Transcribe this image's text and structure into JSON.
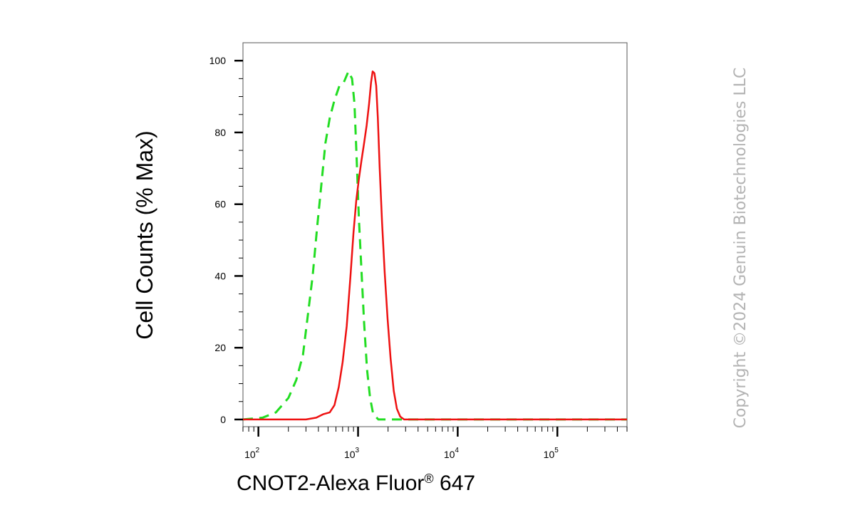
{
  "chart_data": {
    "type": "line",
    "title": "",
    "xlabel": "CNOT2-Alexa Fluor",
    "xlabel_mark": "®",
    "xlabel_suffix": " 647",
    "ylabel": "Cell Counts (% Max)",
    "x_scale": "log",
    "xlim": [
      70,
      500000
    ],
    "ylim": [
      -2,
      105
    ],
    "x_ticks": [
      {
        "value": 100,
        "base": "10",
        "exp": "2"
      },
      {
        "value": 1000,
        "base": "10",
        "exp": "3"
      },
      {
        "value": 10000,
        "base": "10",
        "exp": "4"
      },
      {
        "value": 100000,
        "base": "10",
        "exp": "5"
      }
    ],
    "y_ticks": [
      0,
      20,
      40,
      60,
      80,
      100
    ],
    "grid": false,
    "series": [
      {
        "color": "#22dd22",
        "style": "dashed",
        "points": [
          [
            70,
            0
          ],
          [
            110,
            0.5
          ],
          [
            150,
            2
          ],
          [
            200,
            6
          ],
          [
            240,
            11
          ],
          [
            280,
            18
          ],
          [
            310,
            28
          ],
          [
            350,
            40
          ],
          [
            390,
            54
          ],
          [
            430,
            66
          ],
          [
            470,
            77
          ],
          [
            520,
            84
          ],
          [
            580,
            89
          ],
          [
            650,
            93
          ],
          [
            720,
            94
          ],
          [
            800,
            97
          ],
          [
            870,
            95
          ],
          [
            920,
            88
          ],
          [
            970,
            72
          ],
          [
            1020,
            56
          ],
          [
            1080,
            42
          ],
          [
            1150,
            27
          ],
          [
            1230,
            14
          ],
          [
            1320,
            6
          ],
          [
            1420,
            1.5
          ],
          [
            1600,
            0
          ],
          [
            500000,
            0
          ]
        ]
      },
      {
        "color": "#ee1111",
        "style": "solid",
        "points": [
          [
            70,
            0
          ],
          [
            300,
            0
          ],
          [
            380,
            0.5
          ],
          [
            450,
            1.5
          ],
          [
            520,
            2
          ],
          [
            580,
            4
          ],
          [
            640,
            9
          ],
          [
            700,
            16
          ],
          [
            770,
            26
          ],
          [
            840,
            40
          ],
          [
            900,
            52
          ],
          [
            960,
            61
          ],
          [
            1020,
            67
          ],
          [
            1080,
            72
          ],
          [
            1150,
            77
          ],
          [
            1220,
            82
          ],
          [
            1290,
            88
          ],
          [
            1350,
            94
          ],
          [
            1400,
            97
          ],
          [
            1460,
            96.5
          ],
          [
            1520,
            93
          ],
          [
            1580,
            84
          ],
          [
            1650,
            70
          ],
          [
            1740,
            55
          ],
          [
            1850,
            41
          ],
          [
            1980,
            28
          ],
          [
            2120,
            17
          ],
          [
            2280,
            8
          ],
          [
            2450,
            3
          ],
          [
            2650,
            0.8
          ],
          [
            2900,
            0
          ],
          [
            500000,
            0
          ]
        ]
      }
    ]
  },
  "copyright": "Copyright ©2024 Genuin Biotechnologies LLC"
}
